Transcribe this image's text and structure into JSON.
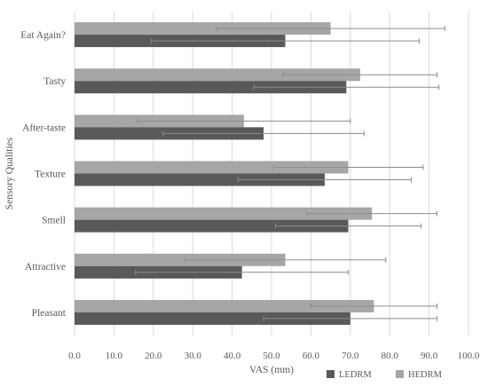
{
  "chart_data": {
    "type": "bar",
    "orientation": "horizontal",
    "categories": [
      "Eat Again?",
      "Tasty",
      "After-taste",
      "Texture",
      "Smell",
      "Attractive",
      "Pleasant"
    ],
    "series": [
      {
        "name": "HEDRM",
        "color": "#a6a6a6",
        "values": [
          65.0,
          72.5,
          43.0,
          69.5,
          75.5,
          53.5,
          76.0
        ],
        "error": [
          29.0,
          19.5,
          27.0,
          19.0,
          16.5,
          25.5,
          16.0
        ]
      },
      {
        "name": "LEDRM",
        "color": "#595959",
        "values": [
          53.5,
          69.0,
          48.0,
          63.5,
          69.5,
          42.5,
          70.0
        ],
        "error": [
          34.0,
          23.5,
          25.5,
          22.0,
          18.5,
          27.0,
          22.0
        ]
      }
    ],
    "legend_order": [
      "LEDRM",
      "HEDRM"
    ],
    "xlabel": "VAS (mm)",
    "ylabel": "Sensory Qualities",
    "xlim": [
      0,
      100
    ],
    "xticks": [
      "0.0",
      "10.0",
      "20.0",
      "30.0",
      "40.0",
      "50.0",
      "60.0",
      "70.0",
      "80.0",
      "90.0",
      "100.0"
    ],
    "grid": true,
    "legend_position": "bottom-right"
  }
}
